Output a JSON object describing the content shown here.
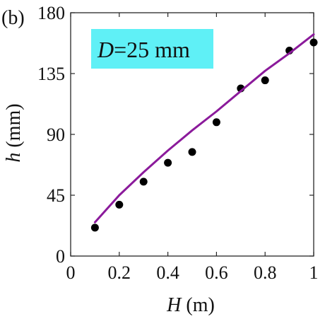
{
  "panel_label": "(b)",
  "chart_data": {
    "type": "scatter",
    "annotation": {
      "var": "D",
      "value": "=25 mm",
      "background": "#5ff0f6"
    },
    "xlabel": {
      "var": "H",
      "unit": " (m)"
    },
    "ylabel": {
      "var": "h",
      "unit": " (mm)"
    },
    "xlim": [
      0,
      1
    ],
    "ylim": [
      0,
      180
    ],
    "xticks": [
      0,
      0.2,
      0.4,
      0.6,
      0.8,
      1
    ],
    "xtick_labels": [
      "0",
      "0.2",
      "0.4",
      "0.6",
      "0.8",
      "1"
    ],
    "yticks": [
      0,
      45,
      90,
      135,
      180
    ],
    "ytick_labels": [
      "0",
      "45",
      "90",
      "135",
      "180"
    ],
    "grid": false,
    "series": [
      {
        "kind": "scatter",
        "color": "#000000",
        "x": [
          0.1,
          0.2,
          0.3,
          0.4,
          0.5,
          0.6,
          0.7,
          0.8,
          0.9,
          1.0
        ],
        "y": [
          21,
          38,
          55,
          69,
          77,
          99,
          124,
          130,
          152,
          158
        ]
      },
      {
        "kind": "line",
        "color": "#8b1a9b",
        "x": [
          0.1,
          0.2,
          0.3,
          0.4,
          0.5,
          0.6,
          0.7,
          0.8,
          0.9,
          1.0
        ],
        "y": [
          25,
          45,
          62,
          78,
          93,
          107,
          122,
          137,
          150,
          164
        ]
      }
    ]
  }
}
